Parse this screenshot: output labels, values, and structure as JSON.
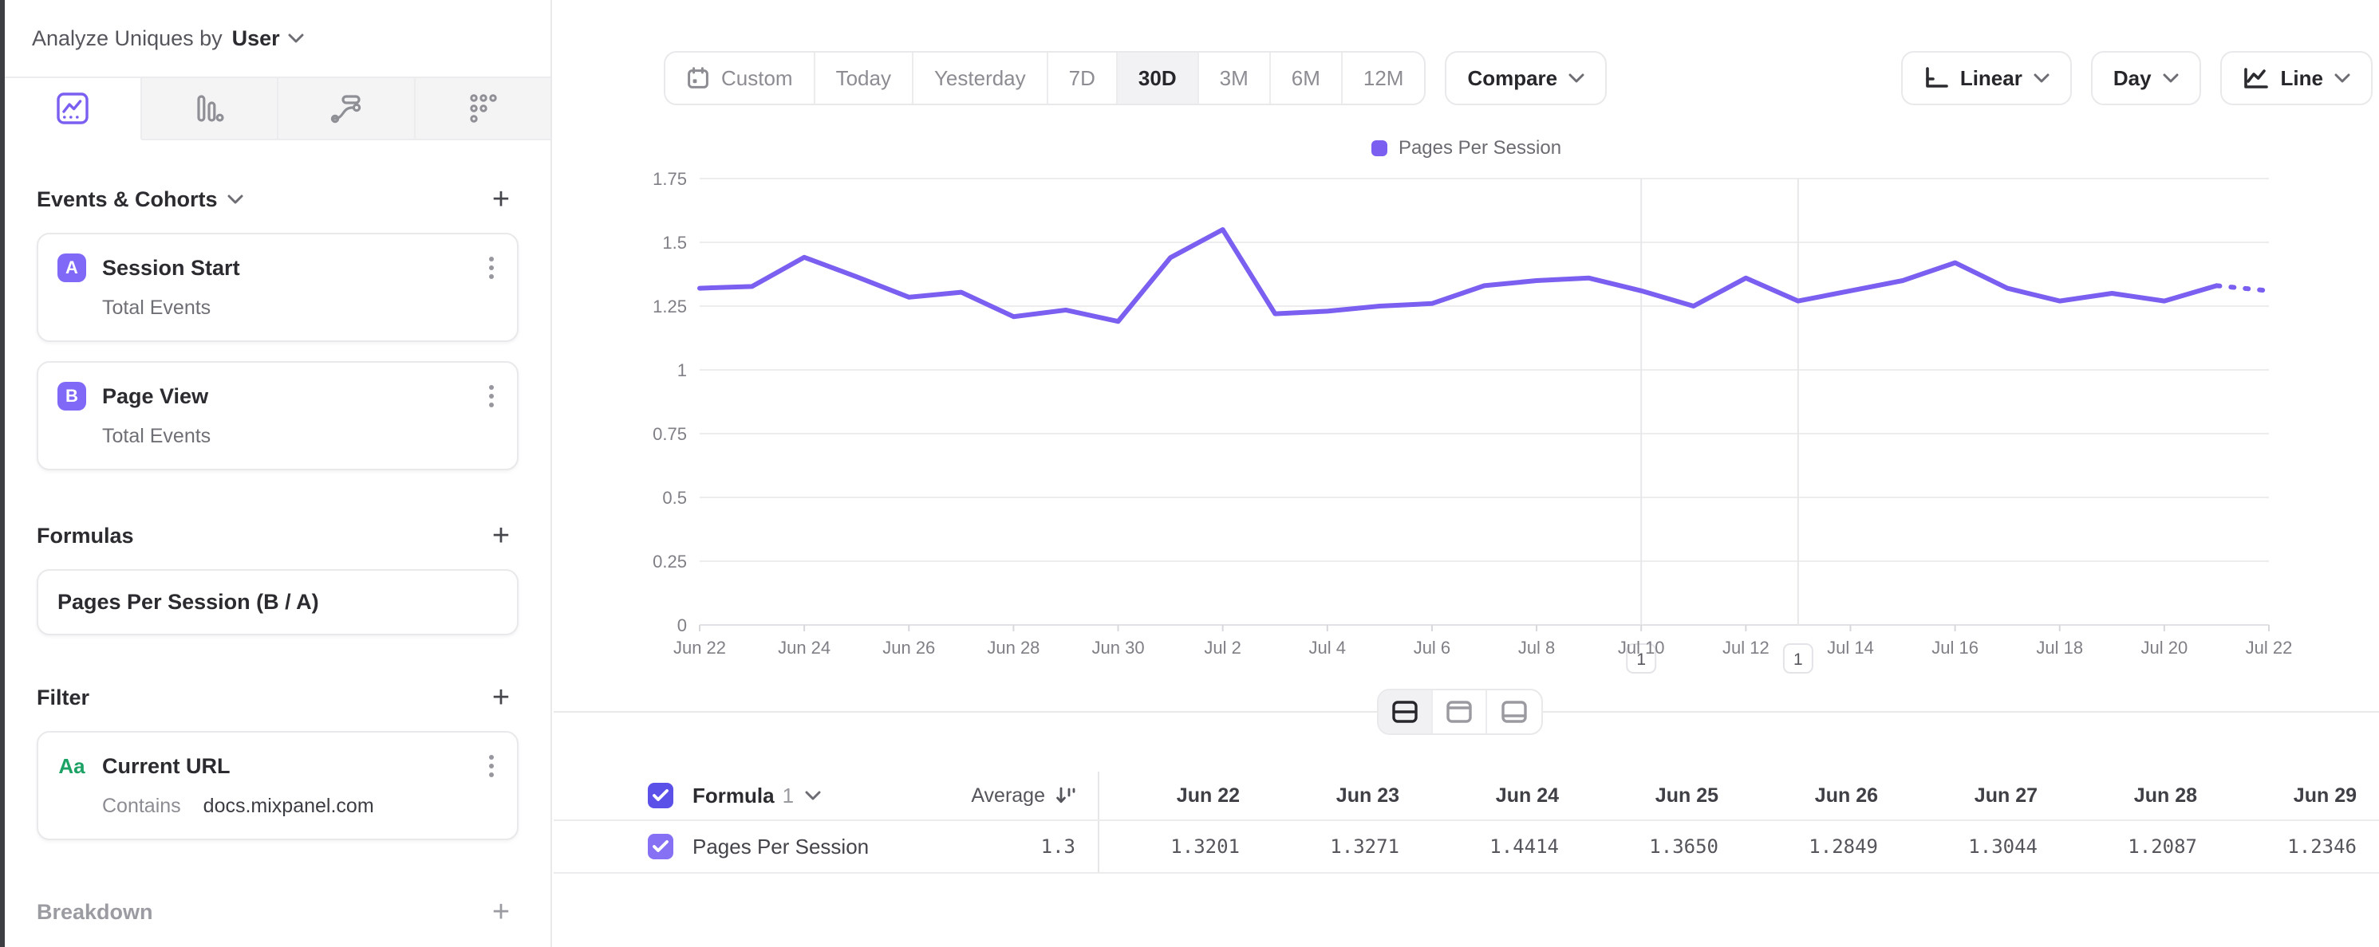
{
  "sidebar": {
    "analyze_label": "Analyze Uniques by",
    "entity": "User",
    "tabs": [
      "insights-line",
      "funnels-bars",
      "flows",
      "retention"
    ],
    "events": {
      "title": "Events & Cohorts",
      "items": [
        {
          "badge": "A",
          "name": "Session Start",
          "metric": "Total Events"
        },
        {
          "badge": "B",
          "name": "Page View",
          "metric": "Total Events"
        }
      ]
    },
    "formulas": {
      "title": "Formulas",
      "items": [
        {
          "name": "Pages Per Session (B / A)"
        }
      ]
    },
    "filter": {
      "title": "Filter",
      "items": [
        {
          "type_icon": "Aa",
          "property": "Current URL",
          "operator": "Contains",
          "value": "docs.mixpanel.com"
        }
      ]
    },
    "breakdown": {
      "title": "Breakdown"
    }
  },
  "toolbar": {
    "date_ranges": [
      "Custom",
      "Today",
      "Yesterday",
      "7D",
      "30D",
      "3M",
      "6M",
      "12M"
    ],
    "active_range": "30D",
    "compare_label": "Compare",
    "scale_label": "Linear",
    "granularity_label": "Day",
    "chart_type_label": "Line"
  },
  "chart_data": {
    "type": "line",
    "title": "",
    "legend": {
      "position": "top-center",
      "entries": [
        "Pages Per Session"
      ]
    },
    "x": [
      "Jun 22",
      "Jun 23",
      "Jun 24",
      "Jun 25",
      "Jun 26",
      "Jun 27",
      "Jun 28",
      "Jun 29",
      "Jun 30",
      "Jul 1",
      "Jul 2",
      "Jul 3",
      "Jul 4",
      "Jul 5",
      "Jul 6",
      "Jul 7",
      "Jul 8",
      "Jul 9",
      "Jul 10",
      "Jul 11",
      "Jul 12",
      "Jul 13",
      "Jul 14",
      "Jul 15",
      "Jul 16",
      "Jul 17",
      "Jul 18",
      "Jul 19",
      "Jul 20",
      "Jul 21",
      "Jul 22"
    ],
    "x_tick_labels": [
      "Jun 22",
      "Jun 24",
      "Jun 26",
      "Jun 28",
      "Jun 30",
      "Jul 2",
      "Jul 4",
      "Jul 6",
      "Jul 8",
      "Jul 10",
      "Jul 12",
      "Jul 14",
      "Jul 16",
      "Jul 18",
      "Jul 20",
      "Jul 22"
    ],
    "series": [
      {
        "name": "Pages Per Session",
        "color": "#7a5ff0",
        "values": [
          1.3201,
          1.3271,
          1.4414,
          1.365,
          1.2849,
          1.3044,
          1.2087,
          1.2346,
          1.19,
          1.44,
          1.55,
          1.22,
          1.23,
          1.25,
          1.26,
          1.33,
          1.35,
          1.36,
          1.31,
          1.25,
          1.36,
          1.27,
          1.31,
          1.35,
          1.42,
          1.32,
          1.27,
          1.3,
          1.27,
          1.33,
          1.31
        ],
        "dashed_from_index": 29
      }
    ],
    "ylim": [
      0,
      1.75
    ],
    "yticks": [
      "0",
      "0.25",
      "0.5",
      "0.75",
      "1",
      "1.25",
      "1.5",
      "1.75"
    ],
    "grid": "horizontal",
    "annotations": [
      {
        "label": "1",
        "x_index": 18
      },
      {
        "label": "1",
        "x_index": 21
      }
    ]
  },
  "table": {
    "formula_label": "Formula",
    "formula_number": "1",
    "average_label": "Average",
    "series_name": "Pages Per Session",
    "average_value": "1.3",
    "columns": [
      {
        "date": "Jun 22",
        "value": "1.3201"
      },
      {
        "date": "Jun 23",
        "value": "1.3271"
      },
      {
        "date": "Jun 24",
        "value": "1.4414"
      },
      {
        "date": "Jun 25",
        "value": "1.3650"
      },
      {
        "date": "Jun 26",
        "value": "1.2849"
      },
      {
        "date": "Jun 27",
        "value": "1.3044"
      },
      {
        "date": "Jun 28",
        "value": "1.2087"
      },
      {
        "date": "Jun 29",
        "value": "1.2346"
      }
    ]
  },
  "colors": {
    "accent_purple": "#7a5ff0",
    "badge_purple": "#8169f8",
    "checkbox_purple": "#5b50e8",
    "filter_green": "#1da265"
  }
}
